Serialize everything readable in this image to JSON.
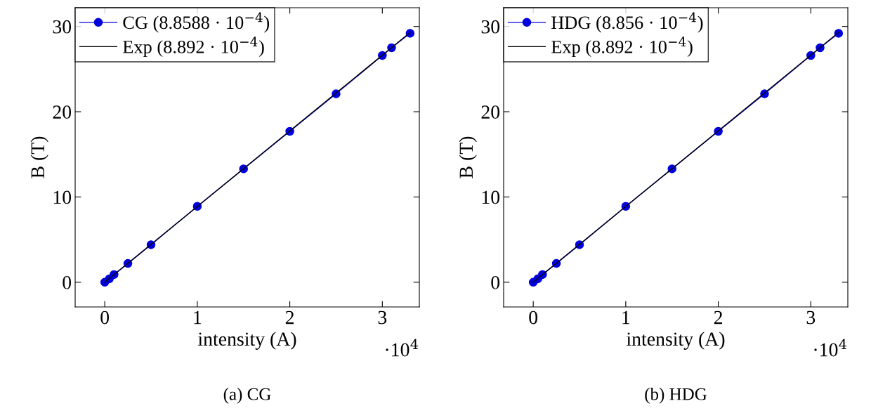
{
  "chart_data": [
    {
      "type": "line",
      "xlabel": "intensity (A)",
      "ylabel": "B (T)",
      "annotations": [
        "·10$^{4}$",
        "(a) CG"
      ],
      "xlim": [
        -0.32,
        3.4
      ],
      "ylim": [
        -2.9,
        32.2
      ],
      "xticks": [
        0,
        1,
        2,
        3
      ],
      "yticks": [
        0,
        10,
        20,
        30
      ],
      "grid": false,
      "legend": "top left",
      "series": [
        {
          "name": "CG (8.8588 · 10$^{−4}$)",
          "color": "#0000dd",
          "marker": "circle",
          "x": [
            0,
            0.05,
            0.1,
            0.25,
            0.5,
            1,
            1.5,
            2,
            2.5,
            3,
            3.1,
            3.3
          ],
          "values": [
            0,
            0.4,
            0.9,
            2.2,
            4.4,
            8.9,
            13.3,
            17.7,
            22.1,
            26.6,
            27.5,
            29.2
          ]
        },
        {
          "name": "Exp (8.892 · 10$^{−4}$)",
          "color": "#000000",
          "marker": "none",
          "x": [
            0,
            3.3
          ],
          "values": [
            0,
            29.3
          ]
        }
      ]
    },
    {
      "type": "line",
      "xlabel": "intensity (A)",
      "ylabel": "B (T)",
      "annotations": [
        "·10$^{4}$",
        "(b) HDG"
      ],
      "xlim": [
        -0.32,
        3.4
      ],
      "ylim": [
        -2.9,
        32.2
      ],
      "xticks": [
        0,
        1,
        2,
        3
      ],
      "yticks": [
        0,
        10,
        20,
        30
      ],
      "grid": false,
      "legend": "top left",
      "series": [
        {
          "name": "HDG (8.856 · 10$^{−4}$)",
          "color": "#0000dd",
          "marker": "circle",
          "x": [
            0,
            0.05,
            0.1,
            0.25,
            0.5,
            1,
            1.5,
            2,
            2.5,
            3,
            3.1,
            3.3
          ],
          "values": [
            0,
            0.4,
            0.9,
            2.2,
            4.4,
            8.9,
            13.3,
            17.7,
            22.1,
            26.6,
            27.5,
            29.2
          ]
        },
        {
          "name": "Exp (8.892 · 10$^{−4}$)",
          "color": "#000000",
          "marker": "none",
          "x": [
            0,
            3.3
          ],
          "values": [
            0,
            29.3
          ]
        }
      ]
    }
  ]
}
